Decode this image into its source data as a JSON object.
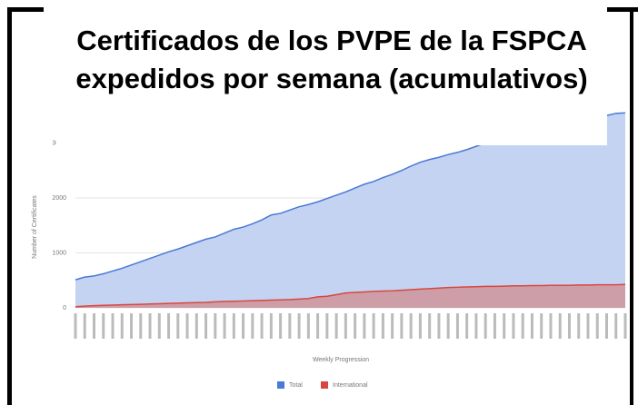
{
  "chart_data": {
    "type": "area",
    "title": "Certificados de los PVPE de la FSPCA expedidos por semana (acumulativos)",
    "xlabel": "Weekly Progression",
    "ylabel": "Number of Certificates",
    "categories": [
      null,
      null,
      null,
      null,
      null,
      null,
      null,
      null,
      null,
      null,
      null,
      null,
      null,
      null,
      null,
      null,
      null,
      null,
      null,
      null,
      null,
      null,
      null,
      null,
      null,
      null,
      null,
      null,
      null,
      null,
      null,
      null,
      null,
      null,
      null,
      null,
      null,
      null,
      null,
      null,
      null,
      null,
      null,
      null,
      null,
      null,
      null,
      null,
      null,
      null,
      null,
      null,
      null,
      null,
      null,
      null,
      null,
      null,
      null,
      null
    ],
    "series": [
      {
        "name": "Total",
        "color": "#4a79d6",
        "values": [
          510,
          560,
          580,
          620,
          670,
          720,
          780,
          840,
          900,
          960,
          1020,
          1070,
          1130,
          1190,
          1250,
          1290,
          1360,
          1430,
          1470,
          1530,
          1600,
          1690,
          1720,
          1780,
          1840,
          1880,
          1930,
          1990,
          2050,
          2110,
          2180,
          2250,
          2300,
          2370,
          2430,
          2500,
          2580,
          2650,
          2700,
          2740,
          2790,
          2830,
          2880,
          2940,
          3000,
          3040,
          3080,
          3120,
          3160,
          3200,
          3240,
          3280,
          3310,
          3350,
          3390,
          3420,
          3460,
          3500,
          3540,
          3550
        ]
      },
      {
        "name": "International",
        "color": "#d9473f",
        "values": [
          20,
          30,
          40,
          45,
          50,
          55,
          60,
          65,
          70,
          75,
          80,
          85,
          90,
          95,
          100,
          110,
          115,
          120,
          125,
          130,
          135,
          140,
          145,
          150,
          160,
          170,
          200,
          210,
          240,
          270,
          280,
          290,
          300,
          305,
          310,
          320,
          330,
          340,
          350,
          360,
          370,
          375,
          380,
          385,
          390,
          390,
          395,
          400,
          400,
          405,
          405,
          410,
          410,
          410,
          415,
          415,
          420,
          420,
          420,
          425
        ]
      }
    ],
    "ylim": [
      0,
      4000
    ],
    "yticks": [
      0,
      1000,
      2000,
      3000
    ],
    "grid": true,
    "legend": "bottom"
  }
}
